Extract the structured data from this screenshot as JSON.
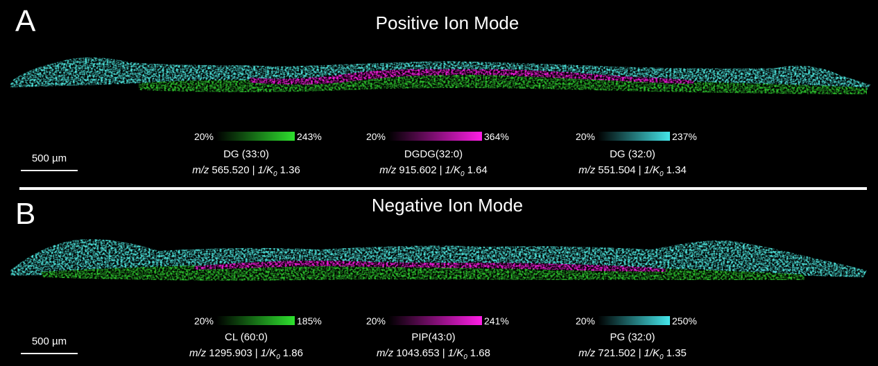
{
  "panels": [
    {
      "label": "A",
      "title": "Positive Ion Mode",
      "scale_bar": "500 µm",
      "ions": [
        {
          "range_min": "20%",
          "range_max": "243%",
          "compound": "DG (33:0)",
          "mz_label": "m/z",
          "mz": "565.520",
          "separator": "|",
          "mobility_label": "1/K",
          "mobility_subscript": "0",
          "mobility": "1.36",
          "color": "#2ee02e"
        },
        {
          "range_min": "20%",
          "range_max": "364%",
          "compound": "DGDG(32:0)",
          "mz_label": "m/z",
          "mz": "915.602",
          "separator": "|",
          "mobility_label": "1/K",
          "mobility_subscript": "0",
          "mobility": "1.64",
          "color": "#ff1ee6"
        },
        {
          "range_min": "20%",
          "range_max": "237%",
          "compound": "DG (32:0)",
          "mz_label": "m/z",
          "mz": "551.504",
          "separator": "|",
          "mobility_label": "1/K",
          "mobility_subscript": "0",
          "mobility": "1.34",
          "color": "#44e6ea"
        }
      ]
    },
    {
      "label": "B",
      "title": "Negative Ion Mode",
      "scale_bar": "500 µm",
      "ions": [
        {
          "range_min": "20%",
          "range_max": "185%",
          "compound": "CL (60:0)",
          "mz_label": "m/z",
          "mz": "1295.903",
          "separator": "|",
          "mobility_label": "1/K",
          "mobility_subscript": "0",
          "mobility": "1.86",
          "color": "#2ee02e"
        },
        {
          "range_min": "20%",
          "range_max": "241%",
          "compound": "PIP(43:0)",
          "mz_label": "m/z",
          "mz": "1043.653",
          "separator": "|",
          "mobility_label": "1/K",
          "mobility_subscript": "0",
          "mobility": "1.68",
          "color": "#ff1ee6"
        },
        {
          "range_min": "20%",
          "range_max": "250%",
          "compound": "PG (32:0)",
          "mz_label": "m/z",
          "mz": "721.502",
          "separator": "|",
          "mobility_label": "1/K",
          "mobility_subscript": "0",
          "mobility": "1.35",
          "color": "#44e6ea"
        }
      ]
    }
  ]
}
